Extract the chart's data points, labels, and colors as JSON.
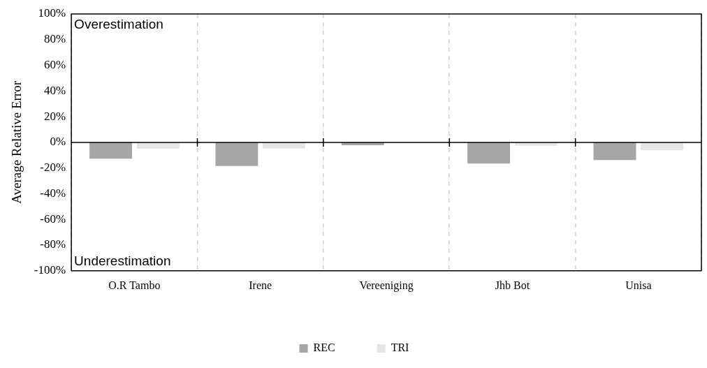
{
  "chart_data": {
    "type": "bar",
    "ylabel": "Average Relative Error",
    "categories": [
      "O.R Tambo",
      "Irene",
      "Vereeniging",
      "Jhb Bot",
      "Unisa"
    ],
    "series": [
      {
        "name": "REC",
        "color": "#a6a6a6",
        "values": [
          -12.7,
          -18.4,
          -2.2,
          -16.5,
          -13.8
        ]
      },
      {
        "name": "TRI",
        "color": "#e6e6e6",
        "values": [
          -4.9,
          -4.8,
          -0.3,
          -2.7,
          -6.2
        ]
      }
    ],
    "ylim": [
      -100,
      100
    ],
    "yticks": [
      {
        "value": -100,
        "label": "-100%"
      },
      {
        "value": -80,
        "label": "-80%"
      },
      {
        "value": -60,
        "label": "-60%"
      },
      {
        "value": -40,
        "label": "-40%"
      },
      {
        "value": -20,
        "label": "-20%"
      },
      {
        "value": 0,
        "label": "0%"
      },
      {
        "value": 20,
        "label": "20%"
      },
      {
        "value": 40,
        "label": "40%"
      },
      {
        "value": 60,
        "label": "60%"
      },
      {
        "value": 80,
        "label": "80%"
      },
      {
        "value": 100,
        "label": "100%"
      }
    ],
    "annotations": [
      "Overestimation",
      "Underestimation"
    ],
    "grid": "x",
    "legend": "bottom"
  }
}
